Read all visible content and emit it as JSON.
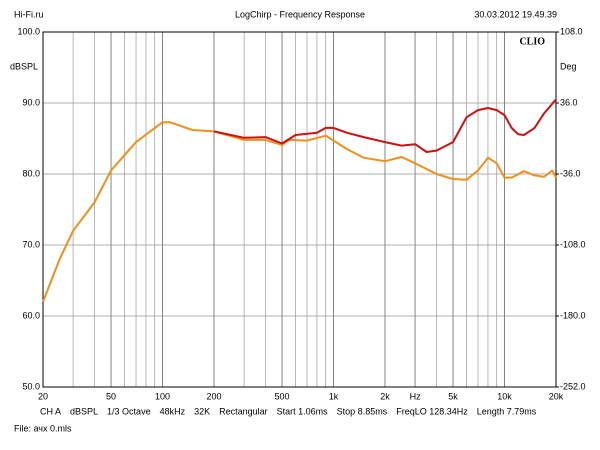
{
  "chart_data": {
    "type": "line",
    "title": "LogChirp - Frequency Response",
    "header_left": "Hi-Fi.ru",
    "header_right": "30.03.2012 19.49.39",
    "brand": "CLIO",
    "y_label": "dBSPL",
    "y2_label": "Deg",
    "log_x": true,
    "grid": true,
    "xlim": [
      20,
      20000
    ],
    "xticks": [
      20,
      50,
      100,
      200,
      500,
      {
        "value": 1000,
        "label": "1k"
      },
      {
        "value": 2000,
        "label": "2k"
      },
      {
        "value": 3000,
        "label": "Hz"
      },
      {
        "value": 5000,
        "label": "5k"
      },
      {
        "value": 10000,
        "label": "10k"
      },
      {
        "value": 20000,
        "label": "20k"
      }
    ],
    "ylim": [
      50,
      100
    ],
    "yticks": [
      {
        "value": 50,
        "label": "50.0"
      },
      {
        "value": 60,
        "label": "60.0"
      },
      {
        "value": 70,
        "label": "70.0"
      },
      {
        "value": 80,
        "label": "80.0"
      },
      {
        "value": 90,
        "label": "90.0"
      },
      {
        "value": 100,
        "label": "100.0"
      }
    ],
    "y2lim": [
      -252,
      108
    ],
    "y2ticks": [
      {
        "value": -252,
        "label": "-252.0"
      },
      {
        "value": -180,
        "label": "-180.0"
      },
      {
        "value": -108,
        "label": "-108.0"
      },
      {
        "value": -36,
        "label": "-36.0"
      },
      {
        "value": 36,
        "label": "36.0"
      },
      {
        "value": 108,
        "label": "108.0"
      }
    ],
    "series": [
      {
        "color": "#f0901a",
        "x": [
          20,
          25,
          30,
          40,
          50,
          70,
          100,
          110,
          150,
          200,
          300,
          400,
          500,
          550,
          700,
          900,
          1000,
          1200,
          1500,
          2000,
          2500,
          3000,
          4000,
          5000,
          6000,
          7000,
          8000,
          9000,
          10000,
          11000,
          13000,
          15000,
          17000,
          19000,
          20000
        ],
        "values": [
          62,
          68,
          72,
          76,
          80.5,
          84.5,
          87.3,
          87.3,
          86.2,
          86,
          84.8,
          84.8,
          84.1,
          84.8,
          84.7,
          85.4,
          84.7,
          83.5,
          82.3,
          81.8,
          82.4,
          81.5,
          80,
          79.3,
          79.2,
          80.5,
          82.3,
          81.5,
          79.5,
          79.5,
          80.4,
          79.8,
          79.6,
          80.5,
          79.5
        ]
      },
      {
        "color": "#d01010",
        "x": [
          200,
          300,
          400,
          500,
          600,
          800,
          900,
          1000,
          1200,
          1500,
          2000,
          2500,
          3000,
          3500,
          4000,
          5000,
          6000,
          7000,
          8000,
          9000,
          10000,
          11000,
          12000,
          13000,
          15000,
          17000,
          20000
        ],
        "values": [
          86,
          85.1,
          85.2,
          84.3,
          85.5,
          85.8,
          86.5,
          86.5,
          85.8,
          85.2,
          84.5,
          84,
          84.2,
          83.1,
          83.3,
          84.5,
          88,
          89,
          89.3,
          89,
          88.3,
          86.5,
          85.6,
          85.5,
          86.5,
          88.5,
          90.5
        ]
      }
    ],
    "footer": [
      "CH A",
      "dBSPL",
      "1/3 Octave",
      "48kHz",
      "32K",
      "Rectangular",
      "Start 1.06ms",
      "Stop 8.85ms",
      "FreqLO 128.34Hz",
      "Length 7.79ms"
    ],
    "file": "File: ачх 0.mls"
  }
}
